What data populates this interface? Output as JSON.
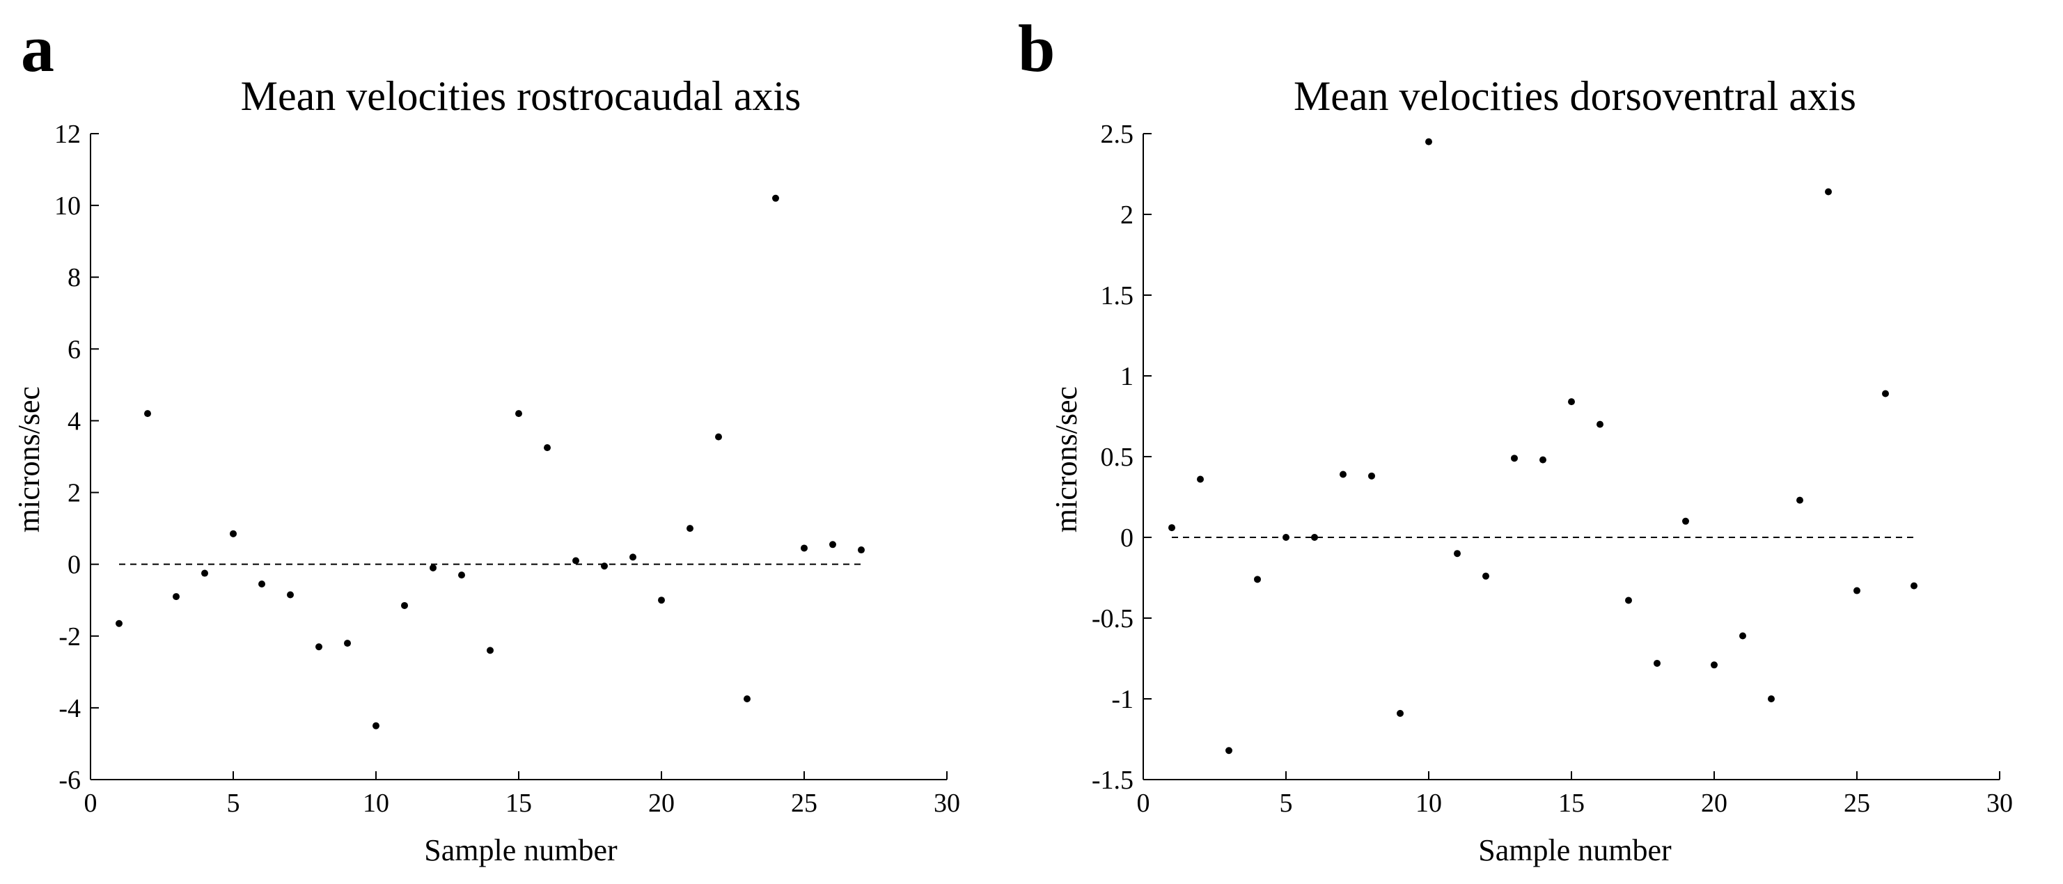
{
  "panels": [
    {
      "letter": "a"
    },
    {
      "letter": "b"
    }
  ],
  "chart_data": [
    {
      "type": "scatter",
      "title": "Mean velocities rostrocaudal axis",
      "xlabel": "Sample number",
      "ylabel": "microns/sec",
      "xlim": [
        0,
        30
      ],
      "ylim": [
        -6,
        12
      ],
      "xticks": [
        0,
        5,
        10,
        15,
        20,
        25,
        30
      ],
      "yticks": [
        -6,
        -4,
        -2,
        0,
        2,
        4,
        6,
        8,
        10,
        12
      ],
      "x": [
        1,
        2,
        3,
        4,
        5,
        6,
        7,
        8,
        9,
        10,
        11,
        12,
        13,
        14,
        15,
        16,
        17,
        18,
        19,
        20,
        21,
        22,
        23,
        24,
        25,
        26,
        27
      ],
      "y": [
        -1.65,
        4.2,
        -0.9,
        -0.25,
        0.85,
        -0.55,
        -0.85,
        -2.3,
        -2.2,
        -4.5,
        -1.15,
        -0.1,
        -0.3,
        -2.4,
        4.2,
        3.25,
        0.1,
        -0.05,
        0.2,
        -1.0,
        1.0,
        3.55,
        -3.75,
        10.2,
        0.45,
        0.55,
        0.4
      ],
      "reference_line": {
        "y": 0,
        "from_x": 1,
        "to_x": 27,
        "style": "dashed"
      },
      "grid": false,
      "marker_color": "#000000"
    },
    {
      "type": "scatter",
      "title": "Mean velocities dorsoventral axis",
      "xlabel": "Sample number",
      "ylabel": "microns/sec",
      "xlim": [
        0,
        30
      ],
      "ylim": [
        -1.5,
        2.5
      ],
      "xticks": [
        0,
        5,
        10,
        15,
        20,
        25,
        30
      ],
      "yticks": [
        -1.5,
        -1,
        -0.5,
        0,
        0.5,
        1,
        1.5,
        2,
        2.5
      ],
      "x": [
        1,
        2,
        3,
        4,
        5,
        6,
        7,
        8,
        9,
        10,
        11,
        12,
        13,
        14,
        15,
        16,
        17,
        18,
        19,
        20,
        21,
        22,
        23,
        24,
        25,
        26,
        27
      ],
      "y": [
        0.06,
        0.36,
        -1.32,
        -0.26,
        0.0,
        0.0,
        0.39,
        0.38,
        -1.09,
        2.45,
        -0.1,
        -0.24,
        0.49,
        0.48,
        0.84,
        0.7,
        -0.39,
        -0.78,
        0.1,
        -0.79,
        -0.61,
        -1.0,
        0.23,
        2.14,
        -0.33,
        0.89,
        -0.3
      ],
      "reference_line": {
        "y": 0,
        "from_x": 1,
        "to_x": 27,
        "style": "dashed"
      },
      "grid": false,
      "marker_color": "#000000"
    }
  ]
}
